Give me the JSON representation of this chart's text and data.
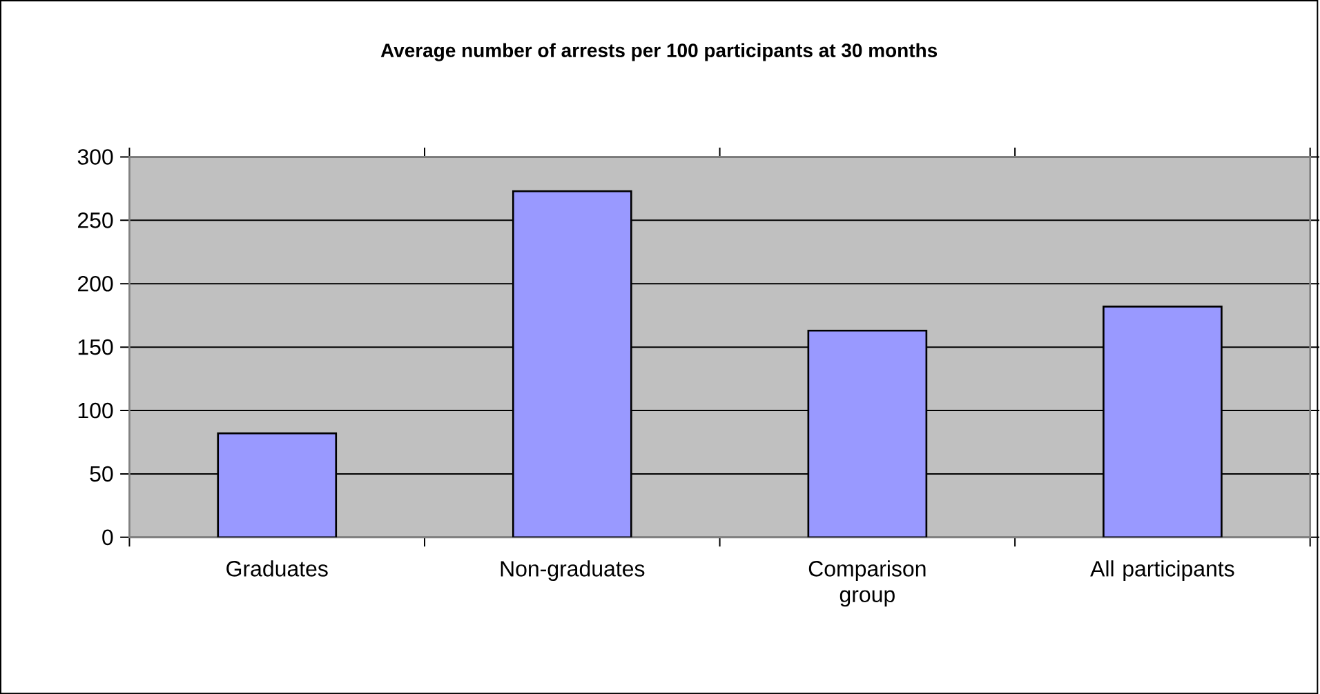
{
  "chart_data": {
    "type": "bar",
    "title": "Average number of arrests per 100 participants at 30 months",
    "categories": [
      "Graduates",
      "Non-graduates",
      "Comparison group",
      "All participants"
    ],
    "values": [
      82,
      273,
      163,
      182
    ],
    "color": "#9999ff",
    "ylim": [
      0,
      300
    ],
    "yticks": [
      0,
      50,
      100,
      150,
      200,
      250,
      300
    ],
    "grid": "y"
  }
}
